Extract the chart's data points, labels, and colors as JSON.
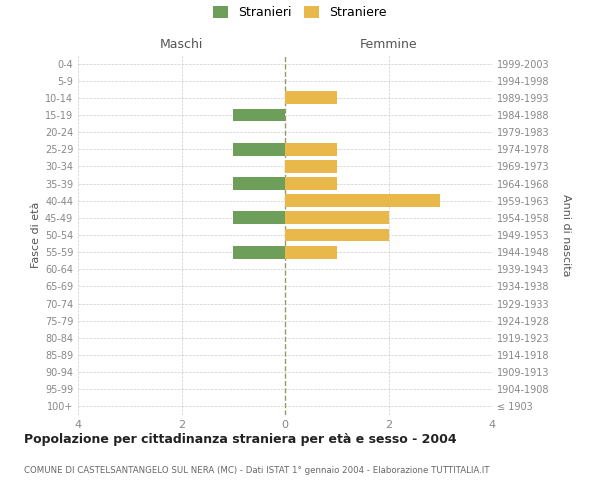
{
  "age_groups": [
    "100+",
    "95-99",
    "90-94",
    "85-89",
    "80-84",
    "75-79",
    "70-74",
    "65-69",
    "60-64",
    "55-59",
    "50-54",
    "45-49",
    "40-44",
    "35-39",
    "30-34",
    "25-29",
    "20-24",
    "15-19",
    "10-14",
    "5-9",
    "0-4"
  ],
  "birth_years": [
    "≤ 1903",
    "1904-1908",
    "1909-1913",
    "1914-1918",
    "1919-1923",
    "1924-1928",
    "1929-1933",
    "1934-1938",
    "1939-1943",
    "1944-1948",
    "1949-1953",
    "1954-1958",
    "1959-1963",
    "1964-1968",
    "1969-1973",
    "1974-1978",
    "1979-1983",
    "1984-1988",
    "1989-1993",
    "1994-1998",
    "1999-2003"
  ],
  "maschi": [
    0,
    0,
    0,
    0,
    0,
    0,
    0,
    0,
    0,
    1,
    0,
    1,
    0,
    1,
    0,
    1,
    0,
    1,
    0,
    0,
    0
  ],
  "femmine": [
    0,
    0,
    0,
    0,
    0,
    0,
    0,
    0,
    0,
    1,
    2,
    2,
    3,
    1,
    1,
    1,
    0,
    0,
    1,
    0,
    0
  ],
  "male_color": "#6d9e5a",
  "female_color": "#e8b84b",
  "grid_color": "#cccccc",
  "center_line_color": "#999966",
  "xlim": 4,
  "title": "Popolazione per cittadinanza straniera per età e sesso - 2004",
  "subtitle": "COMUNE DI CASTELSANTANGELO SUL NERA (MC) - Dati ISTAT 1° gennaio 2004 - Elaborazione TUTTITALIA.IT",
  "xlabel_left": "Maschi",
  "xlabel_right": "Femmine",
  "ylabel_left": "Fasce di età",
  "ylabel_right": "Anni di nascita",
  "legend_stranieri": "Stranieri",
  "legend_straniere": "Straniere",
  "bg_color": "#ffffff",
  "tick_color": "#888888",
  "bar_height": 0.75
}
